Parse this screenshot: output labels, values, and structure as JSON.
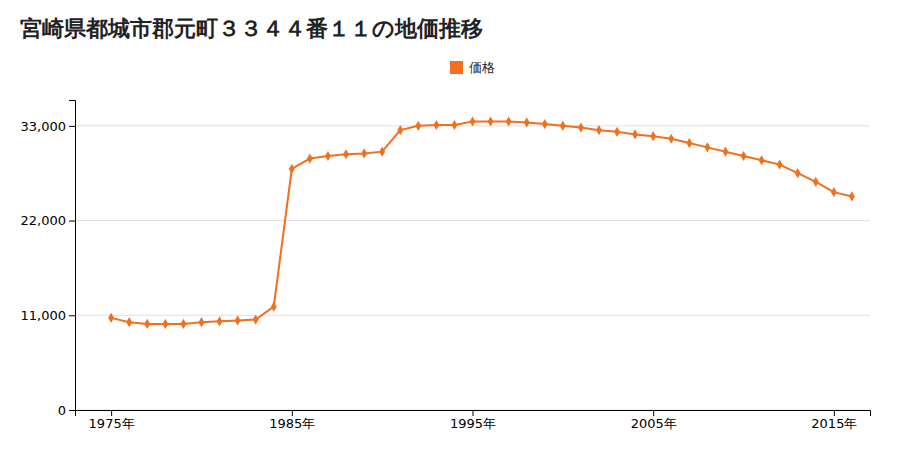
{
  "chart_data": {
    "type": "line",
    "title": "宮崎県都城市郡元町３３４４番１１の地価推移",
    "x": [
      1975,
      1976,
      1977,
      1978,
      1979,
      1980,
      1981,
      1982,
      1983,
      1984,
      1985,
      1986,
      1987,
      1988,
      1989,
      1990,
      1991,
      1992,
      1993,
      1994,
      1995,
      1996,
      1997,
      1998,
      1999,
      2000,
      2001,
      2002,
      2003,
      2004,
      2005,
      2006,
      2007,
      2008,
      2009,
      2010,
      2011,
      2012,
      2013,
      2014,
      2015,
      2016
    ],
    "series": [
      {
        "name": "価格",
        "color": "#f07020",
        "marker": "diamond",
        "values": [
          10700,
          10200,
          10000,
          10000,
          10000,
          10200,
          10300,
          10400,
          10500,
          12000,
          28000,
          29200,
          29500,
          29700,
          29800,
          30000,
          32500,
          33000,
          33100,
          33100,
          33500,
          33500,
          33500,
          33400,
          33200,
          33000,
          32800,
          32500,
          32300,
          32000,
          31800,
          31500,
          31000,
          30500,
          30000,
          29500,
          29000,
          28500,
          27500,
          26500,
          25300,
          24800
        ]
      }
    ],
    "xlim": [
      1973,
      2017
    ],
    "xticks": [
      {
        "value": 1975,
        "label": "1975年"
      },
      {
        "value": 1985,
        "label": "1985年"
      },
      {
        "value": 1995,
        "label": "1995年"
      },
      {
        "value": 2005,
        "label": "2005年"
      },
      {
        "value": 2015,
        "label": "2015年"
      }
    ],
    "ylim": [
      0,
      36000
    ],
    "yticks": [
      0,
      {
        "value": 11000,
        "label": "11,000"
      },
      {
        "value": 22000,
        "label": "22,000"
      },
      {
        "value": 33000,
        "label": "33,000"
      }
    ],
    "grid": "y",
    "legend": "top"
  }
}
